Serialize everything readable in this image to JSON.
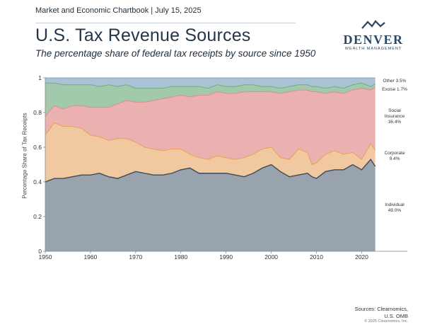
{
  "header": {
    "kicker": "Market and Economic Chartbook | July 15, 2025",
    "title": "U.S. Tax Revenue Sources",
    "subtitle": "The percentage share of federal tax receipts by source since 1950"
  },
  "logo": {
    "word": "DENVER",
    "sub": "WEALTH MANAGEMENT",
    "icon": "mountain-icon"
  },
  "footer": {
    "sources_line1": "Sources: Clearnomics,",
    "sources_line2": "U.S. OMB",
    "copyright": "© 2025 Clearnomics, Inc."
  },
  "chart_data": {
    "type": "area",
    "stacked": true,
    "ylabel": "Percentage Share of Tax Receipts",
    "xlabel": "",
    "xlim": [
      1950,
      2024
    ],
    "ylim": [
      0,
      1
    ],
    "xticks": [
      1950,
      1960,
      1970,
      1980,
      1990,
      2000,
      2010,
      2020
    ],
    "yticks": [
      0,
      0.2,
      0.4,
      0.6,
      0.8,
      1
    ],
    "ytick_labels": [
      "0",
      "0.2",
      "0.4",
      "0.6",
      "0.8",
      "1"
    ],
    "grid": false,
    "legend": "right-side direct labels",
    "x": [
      1950,
      1952,
      1954,
      1956,
      1958,
      1960,
      1962,
      1964,
      1966,
      1968,
      1970,
      1972,
      1974,
      1976,
      1978,
      1980,
      1982,
      1984,
      1986,
      1988,
      1990,
      1992,
      1994,
      1996,
      1998,
      2000,
      2002,
      2004,
      2006,
      2008,
      2009,
      2010,
      2012,
      2014,
      2016,
      2018,
      2020,
      2022,
      2023
    ],
    "series": [
      {
        "name": "Individual",
        "label": "Individual",
        "value_label": "49.0%",
        "color": "#98a3ad",
        "values": [
          0.4,
          0.42,
          0.42,
          0.43,
          0.44,
          0.44,
          0.45,
          0.43,
          0.42,
          0.44,
          0.46,
          0.45,
          0.44,
          0.44,
          0.45,
          0.47,
          0.48,
          0.45,
          0.45,
          0.45,
          0.45,
          0.44,
          0.43,
          0.45,
          0.48,
          0.5,
          0.46,
          0.43,
          0.44,
          0.45,
          0.43,
          0.42,
          0.46,
          0.47,
          0.47,
          0.5,
          0.47,
          0.53,
          0.49
        ]
      },
      {
        "name": "Corporate",
        "label": "Corporate",
        "value_label": "9.4%",
        "color": "#f0c9a1",
        "values": [
          0.27,
          0.32,
          0.3,
          0.29,
          0.27,
          0.23,
          0.21,
          0.21,
          0.23,
          0.21,
          0.17,
          0.15,
          0.15,
          0.14,
          0.14,
          0.12,
          0.08,
          0.09,
          0.08,
          0.1,
          0.09,
          0.09,
          0.11,
          0.11,
          0.11,
          0.1,
          0.08,
          0.1,
          0.15,
          0.12,
          0.07,
          0.09,
          0.1,
          0.11,
          0.09,
          0.07,
          0.06,
          0.09,
          0.094
        ]
      },
      {
        "name": "Social Insurance",
        "label": "Social Insurance",
        "value_label": "36.4%",
        "color": "#eab1b0",
        "values": [
          0.11,
          0.1,
          0.1,
          0.12,
          0.13,
          0.16,
          0.17,
          0.19,
          0.2,
          0.22,
          0.23,
          0.26,
          0.28,
          0.3,
          0.3,
          0.31,
          0.33,
          0.36,
          0.37,
          0.37,
          0.37,
          0.38,
          0.38,
          0.36,
          0.33,
          0.32,
          0.37,
          0.39,
          0.34,
          0.36,
          0.42,
          0.41,
          0.35,
          0.34,
          0.35,
          0.36,
          0.41,
          0.31,
          0.364
        ]
      },
      {
        "name": "Excise",
        "label": "Excise",
        "value_label": "1.7%",
        "color": "#a3c9ac",
        "values": [
          0.19,
          0.13,
          0.14,
          0.12,
          0.12,
          0.13,
          0.12,
          0.13,
          0.1,
          0.09,
          0.08,
          0.08,
          0.07,
          0.06,
          0.06,
          0.05,
          0.06,
          0.05,
          0.04,
          0.04,
          0.04,
          0.04,
          0.04,
          0.04,
          0.03,
          0.03,
          0.03,
          0.03,
          0.03,
          0.03,
          0.03,
          0.03,
          0.03,
          0.03,
          0.03,
          0.03,
          0.03,
          0.02,
          0.017
        ]
      },
      {
        "name": "Other",
        "label": "Other",
        "value_label": "3.5%",
        "color": "#a9c3d5",
        "values": [
          0.03,
          0.03,
          0.04,
          0.04,
          0.04,
          0.04,
          0.05,
          0.04,
          0.05,
          0.04,
          0.06,
          0.06,
          0.06,
          0.06,
          0.05,
          0.05,
          0.05,
          0.05,
          0.06,
          0.04,
          0.05,
          0.05,
          0.04,
          0.04,
          0.05,
          0.05,
          0.06,
          0.05,
          0.04,
          0.04,
          0.05,
          0.05,
          0.06,
          0.05,
          0.06,
          0.04,
          0.03,
          0.05,
          0.035
        ]
      }
    ]
  }
}
